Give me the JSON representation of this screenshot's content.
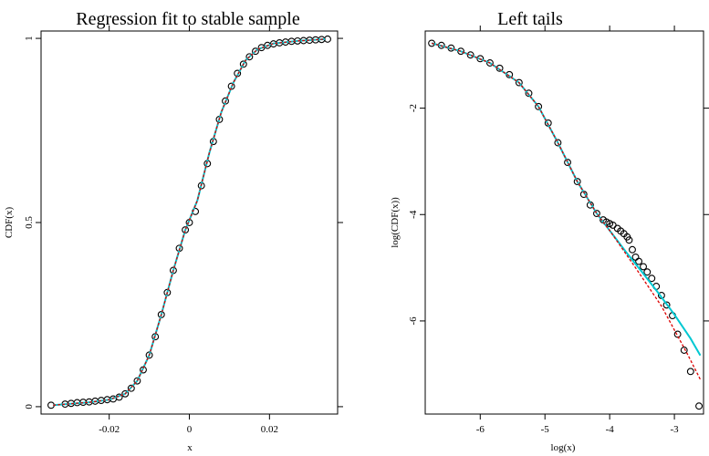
{
  "chart_data": [
    {
      "type": "scatter",
      "title": "Regression fit to stable sample",
      "xlabel": "x",
      "ylabel": "CDF(x)",
      "xlim": [
        -0.037,
        0.037
      ],
      "ylim": [
        -0.02,
        1.02
      ],
      "x_ticks": [
        -0.02,
        0,
        0.02
      ],
      "x_tick_labels": [
        "-0.02",
        "0",
        "0.02"
      ],
      "y_ticks": [
        0,
        0.5,
        1
      ],
      "y_tick_labels": [
        "0",
        "0.5",
        "1"
      ],
      "grid": false,
      "series": [
        {
          "kind": "points",
          "color": "#000000",
          "x": [
            -0.0345,
            -0.031,
            -0.0295,
            -0.028,
            -0.0265,
            -0.025,
            -0.0235,
            -0.022,
            -0.0205,
            -0.019,
            -0.0175,
            -0.016,
            -0.0145,
            -0.013,
            -0.0115,
            -0.01,
            -0.0085,
            -0.007,
            -0.0055,
            -0.004,
            -0.0025,
            -0.001,
            0.0,
            0.0015,
            0.003,
            0.0045,
            0.006,
            0.0075,
            0.009,
            0.0105,
            0.012,
            0.0135,
            0.015,
            0.0165,
            0.018,
            0.0195,
            0.021,
            0.0225,
            0.024,
            0.0255,
            0.027,
            0.0285,
            0.03,
            0.0315,
            0.033,
            0.0345
          ],
          "y": [
            0.004,
            0.007,
            0.009,
            0.011,
            0.012,
            0.013,
            0.015,
            0.017,
            0.019,
            0.021,
            0.026,
            0.035,
            0.05,
            0.07,
            0.1,
            0.14,
            0.19,
            0.25,
            0.31,
            0.37,
            0.43,
            0.48,
            0.5,
            0.53,
            0.6,
            0.66,
            0.72,
            0.78,
            0.83,
            0.87,
            0.905,
            0.93,
            0.95,
            0.965,
            0.975,
            0.981,
            0.985,
            0.988,
            0.99,
            0.992,
            0.993,
            0.994,
            0.995,
            0.996,
            0.997,
            0.998
          ]
        },
        {
          "kind": "line",
          "color": "#00c8d2",
          "style": "solid",
          "x": [
            -0.034,
            -0.025,
            -0.02,
            -0.016,
            -0.013,
            -0.01,
            -0.007,
            -0.004,
            -0.001,
            0.002,
            0.005,
            0.008,
            0.011,
            0.014,
            0.017,
            0.021,
            0.027,
            0.034
          ],
          "y": [
            0.004,
            0.012,
            0.019,
            0.035,
            0.07,
            0.14,
            0.25,
            0.37,
            0.48,
            0.56,
            0.69,
            0.8,
            0.88,
            0.94,
            0.97,
            0.986,
            0.993,
            0.998
          ]
        },
        {
          "kind": "line",
          "color": "#dd0000",
          "style": "dashed",
          "x": [
            -0.034,
            -0.025,
            -0.02,
            -0.016,
            -0.013,
            -0.01,
            -0.007,
            -0.004,
            -0.001,
            0.002,
            0.005,
            0.008,
            0.011,
            0.014,
            0.017,
            0.021,
            0.027,
            0.034
          ],
          "y": [
            0.004,
            0.012,
            0.019,
            0.035,
            0.07,
            0.14,
            0.25,
            0.37,
            0.48,
            0.56,
            0.69,
            0.8,
            0.88,
            0.94,
            0.97,
            0.986,
            0.993,
            0.998
          ]
        }
      ]
    },
    {
      "type": "scatter",
      "title": "Left tails",
      "xlabel": "log(x)",
      "ylabel": "log(CDF(x))",
      "xlim": [
        -6.85,
        -2.55
      ],
      "ylim": [
        -7.75,
        -0.55
      ],
      "x_ticks": [
        -6,
        -5,
        -4,
        -3
      ],
      "x_tick_labels": [
        "-6",
        "-5",
        "-4",
        "-3"
      ],
      "y_ticks": [
        -2,
        -4,
        -6
      ],
      "y_tick_labels": [
        "-2",
        "-4",
        "-6"
      ],
      "grid": false,
      "series": [
        {
          "kind": "points",
          "color": "#000000",
          "x": [
            -6.75,
            -6.6,
            -6.45,
            -6.3,
            -6.15,
            -6.0,
            -5.85,
            -5.7,
            -5.55,
            -5.4,
            -5.25,
            -5.1,
            -4.95,
            -4.8,
            -4.65,
            -4.5,
            -4.4,
            -4.3,
            -4.2,
            -4.1,
            -4.05,
            -4.0,
            -3.95,
            -3.88,
            -3.83,
            -3.78,
            -3.73,
            -3.7,
            -3.65,
            -3.6,
            -3.55,
            -3.48,
            -3.42,
            -3.35,
            -3.28,
            -3.2,
            -3.12,
            -3.03,
            -2.95,
            -2.85,
            -2.75,
            -2.62
          ],
          "y": [
            -0.78,
            -0.82,
            -0.87,
            -0.93,
            -1.0,
            -1.07,
            -1.15,
            -1.25,
            -1.37,
            -1.52,
            -1.72,
            -1.97,
            -2.28,
            -2.65,
            -3.02,
            -3.38,
            -3.62,
            -3.82,
            -3.98,
            -4.1,
            -4.14,
            -4.17,
            -4.2,
            -4.26,
            -4.31,
            -4.36,
            -4.42,
            -4.48,
            -4.66,
            -4.8,
            -4.88,
            -4.98,
            -5.08,
            -5.2,
            -5.35,
            -5.52,
            -5.7,
            -5.9,
            -6.25,
            -6.55,
            -6.95,
            -7.6
          ]
        },
        {
          "kind": "line",
          "color": "#00c8d2",
          "style": "solid",
          "x": [
            -6.75,
            -6.3,
            -5.85,
            -5.4,
            -5.1,
            -4.8,
            -4.5,
            -4.2,
            -4.0,
            -3.75,
            -3.5,
            -3.25,
            -3.0,
            -2.75,
            -2.6
          ],
          "y": [
            -0.78,
            -0.93,
            -1.15,
            -1.52,
            -1.97,
            -2.65,
            -3.38,
            -3.98,
            -4.3,
            -4.7,
            -5.08,
            -5.47,
            -5.88,
            -6.33,
            -6.65
          ]
        },
        {
          "kind": "line",
          "color": "#dd0000",
          "style": "dashed",
          "x": [
            -6.75,
            -6.3,
            -5.85,
            -5.4,
            -5.1,
            -4.8,
            -4.5,
            -4.2,
            -4.0,
            -3.6,
            -3.2,
            -2.8,
            -2.6
          ],
          "y": [
            -0.78,
            -0.93,
            -1.15,
            -1.52,
            -1.97,
            -2.65,
            -3.38,
            -3.98,
            -4.3,
            -5.0,
            -5.72,
            -6.62,
            -7.1
          ]
        }
      ]
    }
  ]
}
